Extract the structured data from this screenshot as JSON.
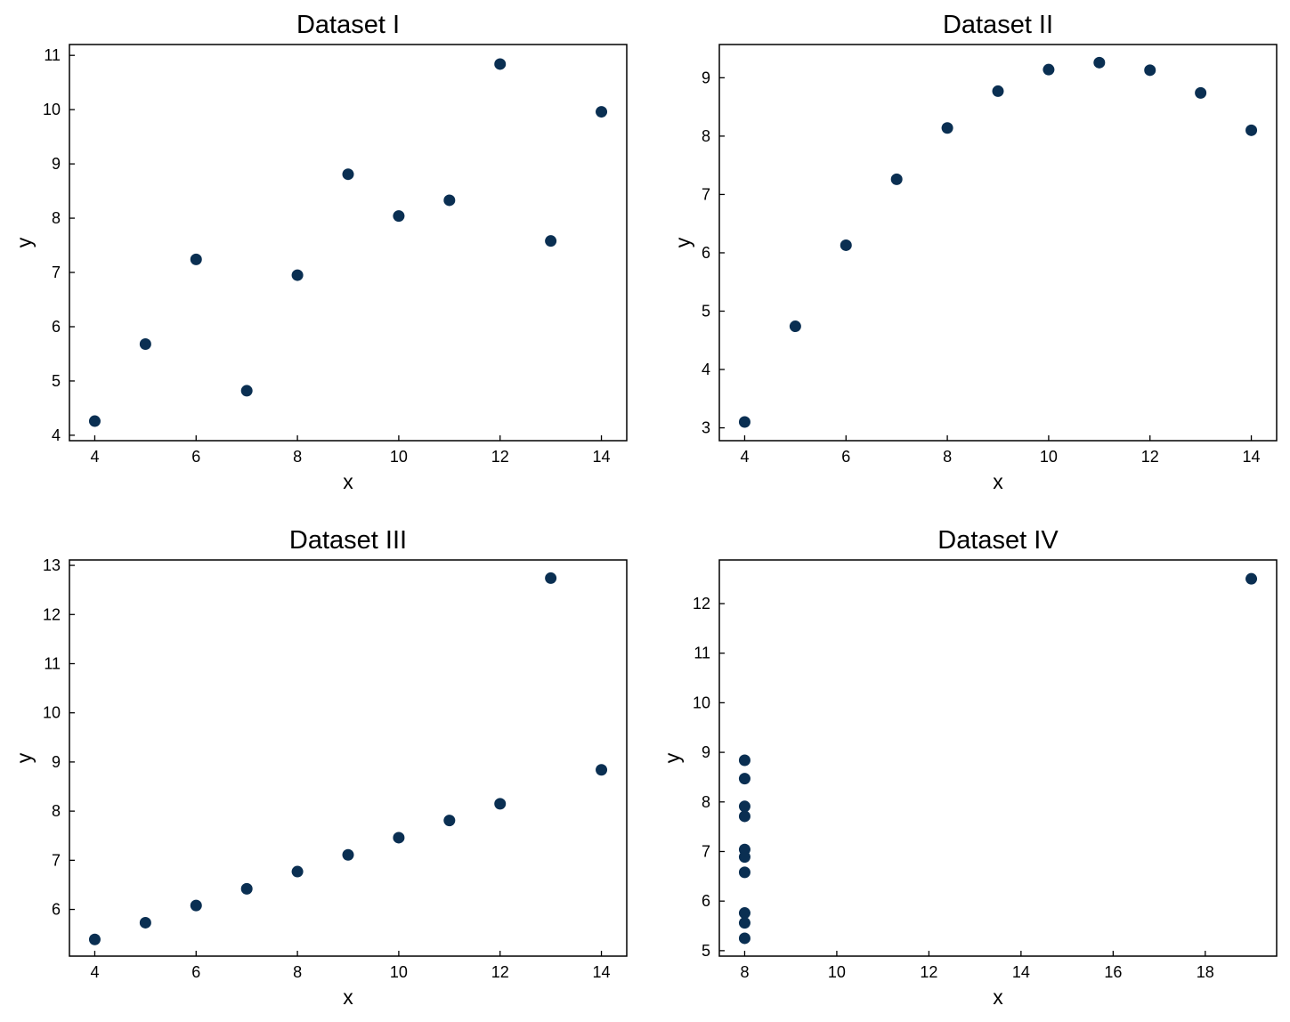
{
  "chart_data": [
    {
      "type": "scatter",
      "title": "Dataset I",
      "xlabel": "x",
      "ylabel": "y",
      "xlim": [
        3.5,
        14.5
      ],
      "ylim": [
        3.9,
        11.2
      ],
      "xticks": [
        4,
        6,
        8,
        10,
        12,
        14
      ],
      "yticks": [
        4,
        5,
        6,
        7,
        8,
        9,
        10,
        11
      ],
      "color": "#0a2f52",
      "grid": false,
      "points": {
        "x": [
          10,
          8,
          13,
          9,
          11,
          14,
          6,
          4,
          12,
          7,
          5
        ],
        "y": [
          8.04,
          6.95,
          7.58,
          8.81,
          8.33,
          9.96,
          7.24,
          4.26,
          10.84,
          4.82,
          5.68
        ]
      }
    },
    {
      "type": "scatter",
      "title": "Dataset II",
      "xlabel": "x",
      "ylabel": "y",
      "xlim": [
        3.5,
        14.5
      ],
      "ylim": [
        2.78,
        9.57
      ],
      "xticks": [
        4,
        6,
        8,
        10,
        12,
        14
      ],
      "yticks": [
        3,
        4,
        5,
        6,
        7,
        8,
        9
      ],
      "color": "#0a2f52",
      "grid": false,
      "points": {
        "x": [
          10,
          8,
          13,
          9,
          11,
          14,
          6,
          4,
          12,
          7,
          5
        ],
        "y": [
          9.14,
          8.14,
          8.74,
          8.77,
          9.26,
          8.1,
          6.13,
          3.1,
          9.13,
          7.26,
          4.74
        ]
      }
    },
    {
      "type": "scatter",
      "title": "Dataset III",
      "xlabel": "x",
      "ylabel": "y",
      "xlim": [
        3.5,
        14.5
      ],
      "ylim": [
        5.05,
        13.11
      ],
      "xticks": [
        4,
        6,
        8,
        10,
        12,
        14
      ],
      "yticks": [
        6,
        7,
        8,
        9,
        10,
        11,
        12,
        13
      ],
      "color": "#0a2f52",
      "grid": false,
      "points": {
        "x": [
          10,
          8,
          13,
          9,
          11,
          14,
          6,
          4,
          12,
          7,
          5
        ],
        "y": [
          7.46,
          6.77,
          12.74,
          7.11,
          7.81,
          8.84,
          6.08,
          5.39,
          8.15,
          6.42,
          5.73
        ]
      }
    },
    {
      "type": "scatter",
      "title": "Dataset IV",
      "xlabel": "x",
      "ylabel": "y",
      "xlim": [
        7.45,
        19.55
      ],
      "ylim": [
        4.89,
        12.88
      ],
      "xticks": [
        8,
        10,
        12,
        14,
        16,
        18
      ],
      "yticks": [
        5,
        6,
        7,
        8,
        9,
        10,
        11,
        12
      ],
      "color": "#0a2f52",
      "grid": false,
      "points": {
        "x": [
          8,
          8,
          8,
          8,
          8,
          8,
          8,
          19,
          8,
          8,
          8
        ],
        "y": [
          6.58,
          5.76,
          7.71,
          8.84,
          8.47,
          7.04,
          5.25,
          12.5,
          5.56,
          7.91,
          6.89
        ]
      }
    }
  ]
}
